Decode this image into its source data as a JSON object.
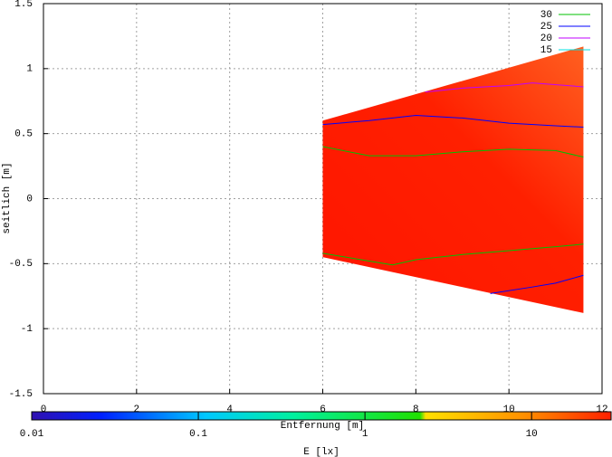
{
  "chart_data": {
    "type": "contour",
    "xlabel": "Entfernung [m]",
    "ylabel": "seitlich [m]",
    "xlim": [
      0,
      12
    ],
    "xticks": [
      0,
      2,
      4,
      6,
      8,
      10,
      12
    ],
    "ylim": [
      -1.5,
      1.5
    ],
    "yticks": [
      -1.5,
      -1,
      -0.5,
      0,
      0.5,
      1,
      1.5
    ],
    "grid": true,
    "legend": "top-right",
    "region": {
      "color": "#ff2a00",
      "x": [
        6,
        11.6
      ],
      "upper": [
        0.6,
        1.17
      ],
      "lower": [
        -0.45,
        -0.88
      ]
    },
    "series": [
      {
        "name": "30",
        "color": "#00c000",
        "x": [
          6,
          7,
          8,
          9,
          10,
          11,
          11.6,
          null,
          6,
          7,
          7.5,
          8,
          9,
          10,
          11,
          11.6
        ],
        "values": [
          0.4,
          0.33,
          0.33,
          0.36,
          0.38,
          0.37,
          0.32,
          null,
          -0.42,
          -0.48,
          -0.51,
          -0.47,
          -0.43,
          -0.4,
          -0.37,
          -0.35
        ]
      },
      {
        "name": "25",
        "color": "#0000ff",
        "x": [
          6,
          7,
          8,
          9,
          10,
          11,
          11.6,
          null,
          9.6,
          10.5,
          11,
          11.6
        ],
        "values": [
          0.57,
          0.6,
          0.64,
          0.62,
          0.58,
          0.56,
          0.55,
          null,
          -0.73,
          -0.68,
          -0.65,
          -0.59
        ]
      },
      {
        "name": "20",
        "color": "#c000ff",
        "x": [
          8.2,
          9,
          10,
          10.5,
          11.6
        ],
        "values": [
          0.82,
          0.85,
          0.87,
          0.89,
          0.86
        ]
      },
      {
        "name": "15",
        "color": "#00e0e0",
        "x": [],
        "values": []
      }
    ],
    "colorbar": {
      "label": "E [lx]",
      "log": true,
      "lim": [
        0.01,
        30
      ],
      "ticks": [
        0.01,
        0.1,
        1,
        10
      ]
    }
  }
}
